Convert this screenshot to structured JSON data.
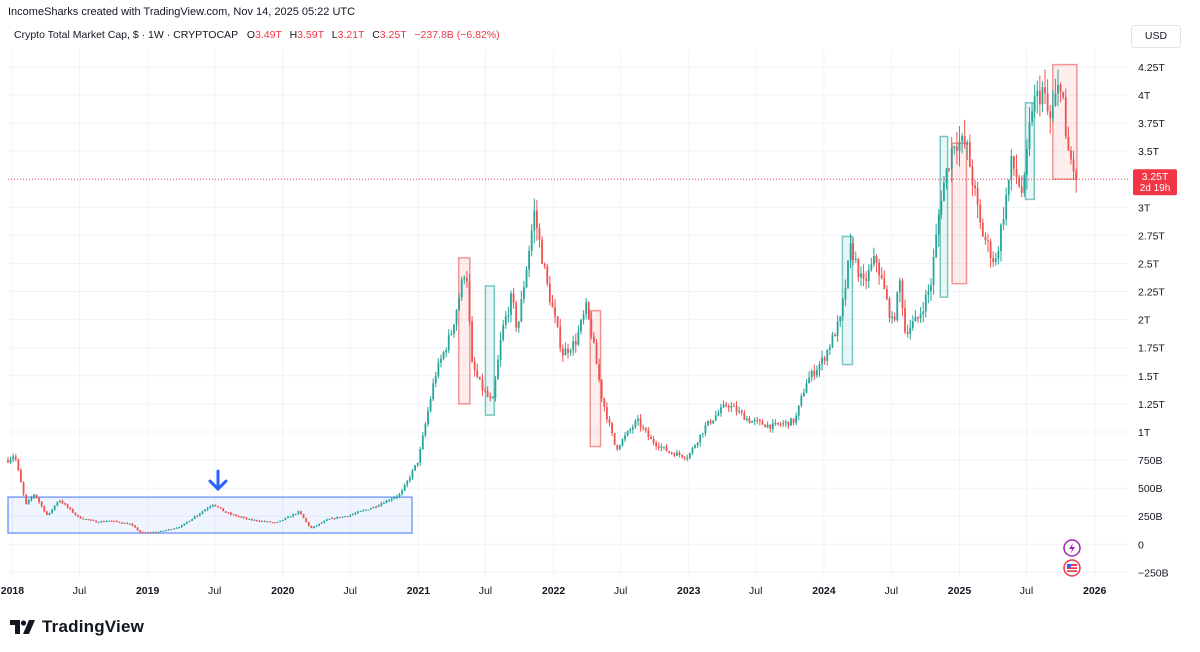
{
  "header": {
    "credit": "IncomeSharks created with TradingView.com, Nov 14, 2025 05:22 UTC",
    "symbol": "Crypto Total Market Cap, $ · 1W · CRYPTOCAP",
    "o_label": "O",
    "o_value": "3.49T",
    "h_label": "H",
    "h_value": "3.59T",
    "l_label": "L",
    "l_value": "3.21T",
    "c_label": "C",
    "c_value": "3.25T",
    "change": "−237.8B (−6.82%)"
  },
  "currency": "USD",
  "brand": "TradingView",
  "price_badge": {
    "value": "3.25T",
    "countdown": "2d 19h"
  },
  "colors": {
    "up": "#26a69a",
    "down": "#ef5350",
    "badge": "#f23645",
    "range_box": "#2962ff",
    "arrow": "#2962ff"
  },
  "chart_data": {
    "type": "candlestick",
    "interval": "1W",
    "ylim": [
      -300000000000,
      4400000000000
    ],
    "xlim": [
      "2017-12-20",
      "2026-04-01"
    ],
    "last_close": 3.25,
    "y_ticks": [
      "4.25T",
      "4T",
      "3.75T",
      "3.5T",
      "3T",
      "2.75T",
      "2.5T",
      "2.25T",
      "2T",
      "1.75T",
      "1.5T",
      "1.25T",
      "1T",
      "750B",
      "500B",
      "250B",
      "0",
      "−250B"
    ],
    "y_tick_values": [
      4.25,
      4.0,
      3.75,
      3.5,
      3.0,
      2.75,
      2.5,
      2.25,
      2.0,
      1.75,
      1.5,
      1.25,
      1.0,
      0.75,
      0.5,
      0.25,
      0,
      -0.25
    ],
    "x_ticks": [
      "2018",
      "Jul",
      "2019",
      "Jul",
      "2020",
      "Jul",
      "2021",
      "Jul",
      "2022",
      "Jul",
      "2023",
      "Jul",
      "2024",
      "Jul",
      "2025",
      "Jul",
      "2026"
    ],
    "x_tick_dates": [
      "2018-01-01",
      "2018-07-01",
      "2019-01-01",
      "2019-07-01",
      "2020-01-01",
      "2020-07-01",
      "2021-01-01",
      "2021-07-01",
      "2022-01-01",
      "2022-07-01",
      "2023-01-01",
      "2023-07-01",
      "2024-01-01",
      "2024-07-01",
      "2025-01-01",
      "2025-07-01",
      "2026-01-01"
    ],
    "price_path": [
      [
        "2017-12-20",
        0.75
      ],
      [
        "2018-01-07",
        0.8
      ],
      [
        "2018-02-06",
        0.35
      ],
      [
        "2018-03-01",
        0.45
      ],
      [
        "2018-04-06",
        0.25
      ],
      [
        "2018-05-06",
        0.4
      ],
      [
        "2018-06-28",
        0.24
      ],
      [
        "2018-08-15",
        0.2
      ],
      [
        "2018-09-20",
        0.21
      ],
      [
        "2018-11-15",
        0.18
      ],
      [
        "2018-12-15",
        0.1
      ],
      [
        "2019-02-01",
        0.11
      ],
      [
        "2019-04-01",
        0.16
      ],
      [
        "2019-06-26",
        0.36
      ],
      [
        "2019-08-01",
        0.28
      ],
      [
        "2019-10-01",
        0.22
      ],
      [
        "2019-12-15",
        0.19
      ],
      [
        "2020-02-14",
        0.29
      ],
      [
        "2020-03-16",
        0.14
      ],
      [
        "2020-05-01",
        0.22
      ],
      [
        "2020-07-01",
        0.26
      ],
      [
        "2020-09-01",
        0.33
      ],
      [
        "2020-11-15",
        0.45
      ],
      [
        "2021-01-01",
        0.75
      ],
      [
        "2021-02-15",
        1.5
      ],
      [
        "2021-04-01",
        1.9
      ],
      [
        "2021-05-10",
        2.5
      ],
      [
        "2021-05-25",
        1.6
      ],
      [
        "2021-06-20",
        1.4
      ],
      [
        "2021-07-20",
        1.25
      ],
      [
        "2021-08-15",
        1.9
      ],
      [
        "2021-09-10",
        2.2
      ],
      [
        "2021-09-25",
        1.9
      ],
      [
        "2021-11-10",
        2.95
      ],
      [
        "2021-12-15",
        2.3
      ],
      [
        "2022-01-25",
        1.7
      ],
      [
        "2022-03-01",
        1.8
      ],
      [
        "2022-03-30",
        2.1
      ],
      [
        "2022-04-15",
        1.85
      ],
      [
        "2022-05-12",
        1.3
      ],
      [
        "2022-06-18",
        0.85
      ],
      [
        "2022-08-15",
        1.1
      ],
      [
        "2022-09-20",
        0.93
      ],
      [
        "2022-11-09",
        0.82
      ],
      [
        "2022-12-30",
        0.78
      ],
      [
        "2023-02-15",
        1.05
      ],
      [
        "2023-04-15",
        1.25
      ],
      [
        "2023-06-15",
        1.1
      ],
      [
        "2023-08-15",
        1.05
      ],
      [
        "2023-10-15",
        1.1
      ],
      [
        "2023-11-15",
        1.45
      ],
      [
        "2023-12-31",
        1.65
      ],
      [
        "2024-02-15",
        2.0
      ],
      [
        "2024-03-14",
        2.65
      ],
      [
        "2024-04-15",
        2.3
      ],
      [
        "2024-05-20",
        2.55
      ],
      [
        "2024-07-05",
        1.95
      ],
      [
        "2024-07-25",
        2.35
      ],
      [
        "2024-08-07",
        1.9
      ],
      [
        "2024-09-10",
        2.0
      ],
      [
        "2024-10-15",
        2.3
      ],
      [
        "2024-11-12",
        3.1
      ],
      [
        "2024-12-17",
        3.6
      ],
      [
        "2025-01-20",
        3.55
      ],
      [
        "2025-02-28",
        2.8
      ],
      [
        "2025-04-08",
        2.5
      ],
      [
        "2025-05-22",
        3.4
      ],
      [
        "2025-06-22",
        3.1
      ],
      [
        "2025-07-15",
        3.9
      ],
      [
        "2025-08-14",
        4.05
      ],
      [
        "2025-09-01",
        3.75
      ],
      [
        "2025-10-06",
        4.2
      ],
      [
        "2025-10-11",
        3.6
      ],
      [
        "2025-11-14",
        3.25
      ]
    ],
    "annotations": [
      {
        "type": "range_box",
        "color": "blue",
        "x0": "2017-12-20",
        "x1": "2020-12-15",
        "y0": 0.1,
        "y1": 0.42
      },
      {
        "type": "arrow_down",
        "color": "blue",
        "x": "2019-07-10",
        "y_tip": 0.42
      },
      {
        "type": "box",
        "color": "green",
        "x0": "2021-07-01",
        "x1": "2021-07-25",
        "y0": 1.15,
        "y1": 2.3
      },
      {
        "type": "box",
        "color": "red",
        "x0": "2021-04-20",
        "x1": "2021-05-20",
        "y0": 1.25,
        "y1": 2.55
      },
      {
        "type": "box",
        "color": "red",
        "x0": "2022-04-10",
        "x1": "2022-05-08",
        "y0": 0.87,
        "y1": 2.08
      },
      {
        "type": "box",
        "color": "green",
        "x0": "2024-02-20",
        "x1": "2024-03-18",
        "y0": 1.6,
        "y1": 2.74
      },
      {
        "type": "box",
        "color": "green",
        "x0": "2024-11-10",
        "x1": "2024-11-30",
        "y0": 2.2,
        "y1": 3.63
      },
      {
        "type": "box",
        "color": "red",
        "x0": "2024-12-12",
        "x1": "2025-01-20",
        "y0": 2.32,
        "y1": 3.57
      },
      {
        "type": "box",
        "color": "green",
        "x0": "2025-06-28",
        "x1": "2025-07-22",
        "y0": 3.07,
        "y1": 3.93
      },
      {
        "type": "box",
        "color": "red",
        "x0": "2025-09-10",
        "x1": "2025-11-14",
        "y0": 3.25,
        "y1": 4.27
      }
    ]
  }
}
